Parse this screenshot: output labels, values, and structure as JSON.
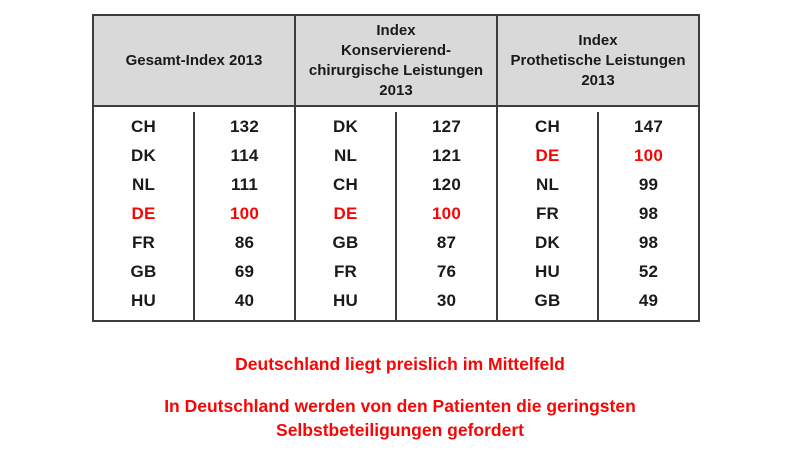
{
  "table": {
    "groups": [
      {
        "header_lines": [
          "Gesamt-Index 2013"
        ],
        "rows": [
          {
            "country": "CH",
            "value": 132,
            "highlight": false
          },
          {
            "country": "DK",
            "value": 114,
            "highlight": false
          },
          {
            "country": "NL",
            "value": 111,
            "highlight": false
          },
          {
            "country": "DE",
            "value": 100,
            "highlight": true
          },
          {
            "country": "FR",
            "value": 86,
            "highlight": false
          },
          {
            "country": "GB",
            "value": 69,
            "highlight": false
          },
          {
            "country": "HU",
            "value": 40,
            "highlight": false
          }
        ]
      },
      {
        "header_lines": [
          "Index",
          "Konservierend-",
          "chirurgische Leistungen",
          "2013"
        ],
        "rows": [
          {
            "country": "DK",
            "value": 127,
            "highlight": false
          },
          {
            "country": "NL",
            "value": 121,
            "highlight": false
          },
          {
            "country": "CH",
            "value": 120,
            "highlight": false
          },
          {
            "country": "DE",
            "value": 100,
            "highlight": true
          },
          {
            "country": "GB",
            "value": 87,
            "highlight": false
          },
          {
            "country": "FR",
            "value": 76,
            "highlight": false
          },
          {
            "country": "HU",
            "value": 30,
            "highlight": false
          }
        ]
      },
      {
        "header_lines": [
          "Index",
          "Prothetische Leistungen",
          "2013"
        ],
        "rows": [
          {
            "country": "CH",
            "value": 147,
            "highlight": false
          },
          {
            "country": "DE",
            "value": 100,
            "highlight": true
          },
          {
            "country": "NL",
            "value": 99,
            "highlight": false
          },
          {
            "country": "FR",
            "value": 98,
            "highlight": false
          },
          {
            "country": "DK",
            "value": 98,
            "highlight": false
          },
          {
            "country": "HU",
            "value": 52,
            "highlight": false
          },
          {
            "country": "GB",
            "value": 49,
            "highlight": false
          }
        ]
      }
    ]
  },
  "notes": {
    "line1": [
      "Deutschland liegt preislich im Mittelfeld"
    ],
    "line2": [
      "In Deutschland werden von den Patienten die geringsten",
      "Selbstbeteiligungen gefordert"
    ]
  },
  "colors": {
    "accent_red": "#fa0505",
    "header_bg": "#d9d9d9",
    "border": "#3d3d3d"
  }
}
